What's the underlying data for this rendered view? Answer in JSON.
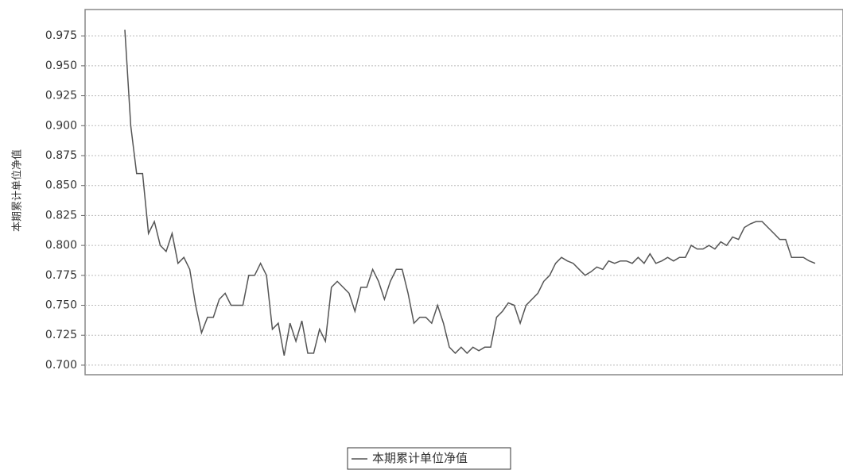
{
  "chart_data": {
    "type": "line",
    "y_label": "本期累计单位净值",
    "series": [
      {
        "name": "本期累计单位净值",
        "color": "#555555",
        "values": [
          0.98,
          0.9,
          0.86,
          0.86,
          0.81,
          0.82,
          0.8,
          0.795,
          0.81,
          0.785,
          0.79,
          0.78,
          0.75,
          0.727,
          0.74,
          0.74,
          0.755,
          0.76,
          0.75,
          0.75,
          0.75,
          0.775,
          0.775,
          0.785,
          0.775,
          0.73,
          0.735,
          0.708,
          0.735,
          0.72,
          0.737,
          0.71,
          0.71,
          0.73,
          0.72,
          0.765,
          0.77,
          0.765,
          0.76,
          0.745,
          0.765,
          0.765,
          0.78,
          0.77,
          0.755,
          0.77,
          0.78,
          0.78,
          0.76,
          0.735,
          0.74,
          0.74,
          0.735,
          0.75,
          0.735,
          0.715,
          0.71,
          0.715,
          0.71,
          0.715,
          0.712,
          0.715,
          0.715,
          0.74,
          0.745,
          0.752,
          0.75,
          0.735,
          0.75,
          0.755,
          0.76,
          0.77,
          0.775,
          0.785,
          0.79,
          0.787,
          0.785,
          0.78,
          0.775,
          0.778,
          0.782,
          0.78,
          0.787,
          0.785,
          0.787,
          0.787,
          0.785,
          0.79,
          0.785,
          0.793,
          0.785,
          0.787,
          0.79,
          0.787,
          0.79,
          0.79,
          0.8,
          0.797,
          0.797,
          0.8,
          0.797,
          0.803,
          0.8,
          0.807,
          0.805,
          0.815,
          0.818,
          0.82,
          0.82,
          0.815,
          0.81,
          0.805,
          0.805,
          0.79,
          0.79,
          0.79,
          0.787,
          0.785
        ]
      }
    ],
    "ylim": [
      0.692,
      0.997
    ],
    "yticks": [
      {
        "value": 0.7,
        "label": "0.700"
      },
      0.725,
      {
        "value": 0.75,
        "label": "0.750"
      },
      0.775,
      {
        "value": 0.8,
        "label": "0.800"
      },
      0.825,
      {
        "value": 0.85,
        "label": "0.850"
      },
      0.875,
      {
        "value": 0.9,
        "label": "0.900"
      },
      0.925,
      {
        "value": 0.95,
        "label": "0.950"
      },
      0.975
    ],
    "grid": true
  }
}
